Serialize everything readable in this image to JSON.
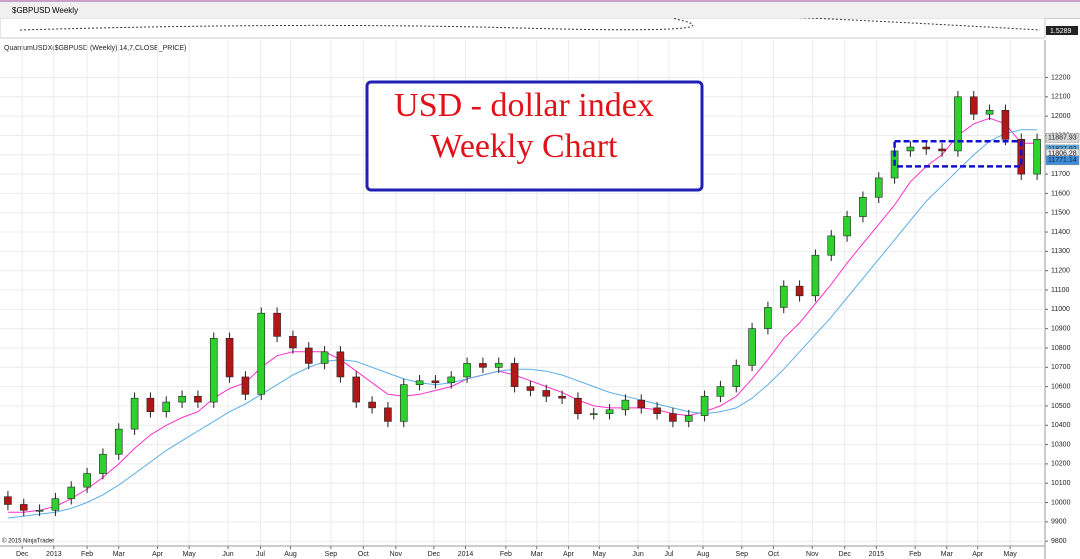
{
  "chart_data": {
    "type": "candlestick",
    "instrument": "$GBPUSD",
    "period": "Weekly",
    "mini_price": "1.5289",
    "indicator_label": "QuantumUSDX($GBPUSD (Weekly),14,7,CLOSE_PRICE)",
    "title": "USD - dollar index",
    "subtitle": "Weekly Chart",
    "copyright": "© 2015 NinjaTrader",
    "up_color": "#2fd12f",
    "down_color": "#b01818",
    "grid": true,
    "xlim": [
      -1,
      131
    ],
    "ylim": [
      9775,
      12275
    ],
    "yticks": [
      9800,
      9900,
      10000,
      10100,
      10200,
      10300,
      10400,
      10500,
      10600,
      10700,
      10800,
      10900,
      11000,
      11100,
      11200,
      11300,
      11400,
      11500,
      11600,
      11700,
      11800,
      11900,
      12000,
      12100,
      12200
    ],
    "xticks": [
      {
        "value": 1.8,
        "label": "Dec"
      },
      {
        "value": 5.8,
        "label": "2013"
      },
      {
        "value": 10,
        "label": "Feb"
      },
      {
        "value": 14,
        "label": "Mar"
      },
      {
        "value": 18.9,
        "label": "Apr"
      },
      {
        "value": 22.9,
        "label": "May"
      },
      {
        "value": 27.8,
        "label": "Jun"
      },
      {
        "value": 31.9,
        "label": "Jul"
      },
      {
        "value": 35.7,
        "label": "Aug"
      },
      {
        "value": 40.8,
        "label": "Sep"
      },
      {
        "value": 44.9,
        "label": "Oct"
      },
      {
        "value": 49,
        "label": "Nov"
      },
      {
        "value": 53.8,
        "label": "Dec"
      },
      {
        "value": 57.8,
        "label": "2014"
      },
      {
        "value": 62.9,
        "label": "Feb"
      },
      {
        "value": 66.8,
        "label": "Mar"
      },
      {
        "value": 70.8,
        "label": "Apr"
      },
      {
        "value": 74.7,
        "label": "May"
      },
      {
        "value": 79.6,
        "label": "Jun"
      },
      {
        "value": 83.5,
        "label": "Jul"
      },
      {
        "value": 87.8,
        "label": "Aug"
      },
      {
        "value": 92.7,
        "label": "Sep"
      },
      {
        "value": 96.7,
        "label": "Oct"
      },
      {
        "value": 101.6,
        "label": "Nov"
      },
      {
        "value": 105.7,
        "label": "Dec"
      },
      {
        "value": 109.7,
        "label": "2015"
      },
      {
        "value": 114.6,
        "label": "Feb"
      },
      {
        "value": 118.6,
        "label": "Mar"
      },
      {
        "value": 122.5,
        "label": "Apr"
      },
      {
        "value": 126.6,
        "label": "May"
      }
    ],
    "x": [
      0,
      2,
      4,
      6,
      8,
      10,
      12,
      14,
      16,
      18,
      20,
      22,
      24,
      26,
      28,
      30,
      32,
      34,
      36,
      38,
      40,
      42,
      44,
      46,
      48,
      50,
      52,
      54,
      56,
      58,
      60,
      62,
      64,
      66,
      68,
      70,
      72,
      74,
      76,
      78,
      80,
      82,
      84,
      86,
      88,
      90,
      92,
      94,
      96,
      98,
      100,
      102,
      104,
      106,
      108,
      110,
      112,
      114,
      116,
      118,
      120,
      122,
      124,
      126,
      128,
      130
    ],
    "open": [
      10030,
      9990,
      9960,
      9960,
      10020,
      10080,
      10150,
      10250,
      10380,
      10540,
      10470,
      10520,
      10550,
      10520,
      10850,
      10650,
      10560,
      10980,
      10860,
      10800,
      10720,
      10780,
      10650,
      10520,
      10490,
      10420,
      10610,
      10630,
      10620,
      10650,
      10720,
      10700,
      10720,
      10600,
      10580,
      10550,
      10540,
      10460,
      10460,
      10480,
      10530,
      10490,
      10460,
      10420,
      10450,
      10550,
      10600,
      10710,
      10900,
      11010,
      11120,
      11070,
      11280,
      11380,
      11480,
      11580,
      11680,
      11820,
      11840,
      11830,
      11820,
      12100,
      12010,
      12030,
      11880,
      11700
    ],
    "high": [
      10060,
      10020,
      9990,
      10050,
      10110,
      10180,
      10280,
      10410,
      10570,
      10570,
      10550,
      10580,
      10580,
      10880,
      10880,
      10680,
      11010,
      11010,
      10890,
      10830,
      10810,
      10810,
      10680,
      10550,
      10520,
      10640,
      10660,
      10660,
      10680,
      10750,
      10750,
      10750,
      10750,
      10630,
      10610,
      10580,
      10570,
      10490,
      10510,
      10560,
      10560,
      10520,
      10490,
      10480,
      10580,
      10630,
      10740,
      10930,
      11040,
      11150,
      11150,
      11310,
      11410,
      11510,
      11610,
      11710,
      11850,
      11870,
      11870,
      11860,
      12130,
      12130,
      12060,
      12060,
      11910,
      11910
    ],
    "low": [
      9960,
      9930,
      9930,
      9930,
      9990,
      10050,
      10120,
      10220,
      10350,
      10440,
      10440,
      10490,
      10490,
      10490,
      10620,
      10530,
      10530,
      10830,
      10770,
      10690,
      10690,
      10620,
      10490,
      10460,
      10390,
      10390,
      10580,
      10590,
      10590,
      10620,
      10670,
      10670,
      10570,
      10550,
      10520,
      10510,
      10430,
      10430,
      10430,
      10450,
      10460,
      10430,
      10390,
      10390,
      10420,
      10520,
      10570,
      10680,
      10870,
      10980,
      11040,
      11040,
      11250,
      11350,
      11450,
      11550,
      11650,
      11790,
      11800,
      11790,
      11790,
      11980,
      11980,
      11850,
      11670,
      11670
    ],
    "close": [
      9990,
      9960,
      9960,
      10020,
      10080,
      10150,
      10250,
      10380,
      10540,
      10470,
      10520,
      10550,
      10520,
      10850,
      10650,
      10560,
      10980,
      10860,
      10800,
      10720,
      10780,
      10650,
      10520,
      10490,
      10420,
      10610,
      10630,
      10620,
      10650,
      10720,
      10700,
      10720,
      10600,
      10580,
      10550,
      10540,
      10460,
      10460,
      10480,
      10530,
      10490,
      10460,
      10420,
      10450,
      10550,
      10600,
      10710,
      10900,
      11010,
      11120,
      11070,
      11280,
      11380,
      11480,
      11580,
      11680,
      11820,
      11840,
      11830,
      11820,
      12100,
      12010,
      12030,
      11880,
      11700,
      11880
    ],
    "lines": [
      {
        "color": "#ff2fc8",
        "values": [
          9950,
          9950,
          9960,
          9980,
          10020,
          10070,
          10130,
          10200,
          10280,
          10350,
          10400,
          10440,
          10470,
          10540,
          10590,
          10620,
          10700,
          10760,
          10780,
          10780,
          10780,
          10740,
          10680,
          10620,
          10560,
          10550,
          10560,
          10580,
          10600,
          10640,
          10660,
          10680,
          10660,
          10630,
          10600,
          10570,
          10530,
          10500,
          10490,
          10490,
          10490,
          10480,
          10460,
          10450,
          10470,
          10500,
          10550,
          10640,
          10740,
          10850,
          10930,
          11030,
          11130,
          11240,
          11340,
          11440,
          11540,
          11660,
          11740,
          11800,
          11900,
          11960,
          11990,
          11960,
          11860,
          11860
        ]
      },
      {
        "color": "#5aaee6",
        "values": [
          9920,
          9930,
          9940,
          9950,
          9970,
          10000,
          10040,
          10090,
          10150,
          10210,
          10270,
          10320,
          10370,
          10420,
          10470,
          10510,
          10560,
          10610,
          10660,
          10700,
          10730,
          10740,
          10730,
          10700,
          10670,
          10640,
          10620,
          10610,
          10620,
          10640,
          10660,
          10680,
          10690,
          10690,
          10680,
          10660,
          10630,
          10600,
          10570,
          10550,
          10530,
          10510,
          10490,
          10470,
          10460,
          10470,
          10490,
          10540,
          10610,
          10690,
          10780,
          10870,
          10960,
          11060,
          11160,
          11260,
          11360,
          11460,
          11560,
          11640,
          11720,
          11800,
          11870,
          11910,
          11930,
          11930
        ]
      }
    ],
    "annotation_box": {
      "x": [
        112,
        128
      ],
      "y": [
        11740,
        11870
      ],
      "color": "#1010d0"
    },
    "price_markers": [
      {
        "value": 11887.93,
        "color": "#d8d8d8"
      },
      {
        "value": 11827.92,
        "color": "#5aaee6"
      },
      {
        "value": 11806.28,
        "color": "#e8e8e8"
      },
      {
        "value": 11771.14,
        "color": "#3a8ee0"
      }
    ]
  }
}
